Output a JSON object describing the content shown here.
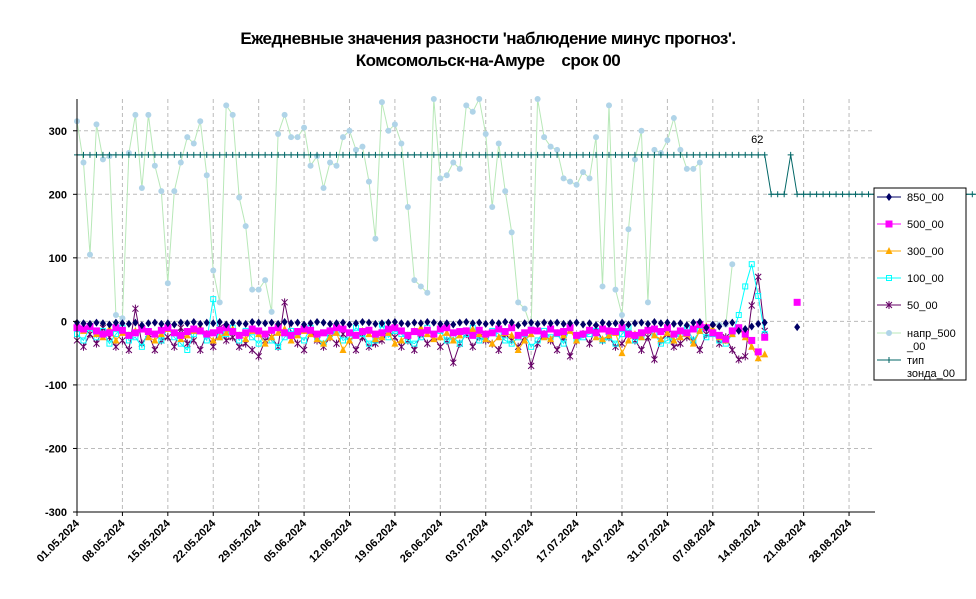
{
  "title": {
    "line1": "Ежедневные значения разности 'наблюдение минус прогноз'.",
    "line2": "Комсомольск-на-Амуре    срок 00"
  },
  "chart_data": {
    "type": "line",
    "ylim": [
      -300,
      350
    ],
    "yticks": [
      -300,
      -200,
      -100,
      0,
      100,
      200,
      300
    ],
    "ytick_labels": [
      "-300",
      "-200",
      "-100",
      "0",
      "100",
      "200",
      "300"
    ],
    "x_start": "2024-05-01",
    "xlim": [
      "2024-05-01",
      "2024-09-01"
    ],
    "xticks": [
      "2024-05-01",
      "2024-05-08",
      "2024-05-15",
      "2024-05-22",
      "2024-05-29",
      "2024-06-05",
      "2024-06-12",
      "2024-06-19",
      "2024-06-26",
      "2024-07-03",
      "2024-07-10",
      "2024-07-17",
      "2024-07-24",
      "2024-07-31",
      "2024-08-07",
      "2024-08-14",
      "2024-08-21",
      "2024-08-28"
    ],
    "xtick_labels": [
      "01.05.2024",
      "08.05.2024",
      "15.05.2024",
      "22.05.2024",
      "29.05.2024",
      "05.06.2024",
      "12.06.2024",
      "19.06.2024",
      "26.06.2024",
      "03.07.2024",
      "10.07.2024",
      "17.07.2024",
      "24.07.2024",
      "31.07.2024",
      "07.08.2024",
      "14.08.2024",
      "21.08.2024",
      "28.08.2024"
    ],
    "grid": true,
    "legend_position": "right",
    "annotation": {
      "text": "62",
      "series": "тип зонда_00",
      "x": "2024-08-14"
    },
    "series": [
      {
        "name": "850_00",
        "legend_lines": [
          "850_00"
        ],
        "color": "#000066",
        "marker": "diamond",
        "line": false,
        "values": [
          -2,
          -3,
          -4,
          -2,
          -3,
          -5,
          -2,
          -3,
          -4,
          -2,
          -6,
          -3,
          -2,
          -4,
          -3,
          -5,
          -2,
          -3,
          -1,
          -4,
          -2,
          -3,
          -1,
          -5,
          -2,
          -3,
          -4,
          -1,
          -2,
          -3,
          -2,
          -4,
          -1,
          -3,
          -2,
          -5,
          -3,
          -1,
          -2,
          -4,
          -3,
          -2,
          -5,
          -3,
          -1,
          -2,
          -4,
          -3,
          -2,
          -1,
          -3,
          -4,
          -2,
          -3,
          -1,
          -2,
          -4,
          -3,
          -5,
          -2,
          -1,
          -3,
          -2,
          -4,
          -2,
          -3,
          -1,
          -2,
          -6,
          -3,
          -2,
          -4,
          -2,
          -3,
          -2,
          -4,
          -3,
          -2,
          -5,
          -3,
          -6,
          -2,
          -4,
          -3,
          -2,
          -5,
          -3,
          -2,
          -4,
          -1,
          -3,
          -2,
          -4,
          -3,
          -6,
          -2,
          -1,
          -10,
          -5,
          -8,
          -3,
          -2,
          -15,
          -12,
          -8,
          -4,
          -2,
          null,
          null,
          null,
          null,
          -9
        ]
      },
      {
        "name": "500_00",
        "legend_lines": [
          "500_00"
        ],
        "color": "#ff00ff",
        "marker": "square",
        "line": false,
        "values": [
          -10,
          -12,
          -8,
          -15,
          -20,
          -18,
          -10,
          -14,
          -22,
          -18,
          -12,
          -16,
          -20,
          -14,
          -10,
          -18,
          -22,
          -16,
          -12,
          -15,
          -20,
          -18,
          -14,
          -10,
          -16,
          -22,
          -18,
          -12,
          -15,
          -20,
          -14,
          -10,
          -18,
          -22,
          -16,
          -12,
          -14,
          -20,
          -18,
          -15,
          -10,
          -12,
          -18,
          -22,
          -16,
          -14,
          -20,
          -18,
          -12,
          -10,
          -15,
          -22,
          -16,
          -18,
          -14,
          -20,
          -12,
          -10,
          -18,
          -16,
          -15,
          -22,
          -14,
          -20,
          -18,
          -12,
          -16,
          -10,
          -22,
          -18,
          -14,
          -15,
          -20,
          -12,
          -18,
          -16,
          -10,
          -22,
          -20,
          -14,
          -18,
          -12,
          -15,
          -16,
          -10,
          -20,
          -22,
          -18,
          -14,
          -12,
          -16,
          -10,
          -20,
          -15,
          -18,
          -12,
          -5,
          -10,
          -18,
          -22,
          -28,
          -15,
          -10,
          -20,
          -30,
          -48,
          -25,
          null,
          null,
          null,
          null,
          30
        ]
      },
      {
        "name": "300_00",
        "legend_lines": [
          "300_00"
        ],
        "color": "#ffaa00",
        "marker": "triangle",
        "line": true,
        "values": [
          -5,
          -15,
          -8,
          -20,
          -25,
          -12,
          -30,
          -18,
          -22,
          -15,
          -10,
          -25,
          -30,
          -20,
          -12,
          -18,
          -28,
          -22,
          -15,
          -10,
          -20,
          -30,
          -25,
          -18,
          -12,
          -22,
          -28,
          -15,
          -20,
          -35,
          -25,
          -18,
          -12,
          -30,
          -22,
          -15,
          -20,
          -28,
          -35,
          -25,
          -18,
          -45,
          -30,
          -22,
          -15,
          -20,
          -28,
          -25,
          -18,
          -35,
          -30,
          -22,
          -15,
          -10,
          -20,
          -28,
          -25,
          -18,
          -30,
          -22,
          -15,
          -12,
          -20,
          -28,
          -35,
          -25,
          -18,
          -22,
          -45,
          -30,
          -20,
          -15,
          -25,
          -28,
          -18,
          -22,
          -15,
          -30,
          -20,
          -12,
          -25,
          -28,
          -22,
          -18,
          -50,
          -30,
          -20,
          -25,
          -15,
          -22,
          -28,
          -18,
          -30,
          -25,
          -20,
          -35,
          -15,
          -8,
          -12,
          -25,
          -30,
          -20,
          -10,
          -25,
          -40,
          -58,
          -52,
          null,
          null,
          null,
          null,
          null
        ]
      },
      {
        "name": "100_00",
        "legend_lines": [
          "100_00"
        ],
        "color": "#00ffff",
        "marker": "square-open",
        "line": true,
        "values": [
          -20,
          -30,
          -10,
          -25,
          -15,
          -35,
          -20,
          -10,
          -30,
          -25,
          -40,
          -15,
          -20,
          -30,
          -10,
          -25,
          -35,
          -45,
          -20,
          -15,
          -30,
          35,
          -25,
          -20,
          -10,
          -30,
          -15,
          -25,
          -35,
          -20,
          -30,
          -40,
          -25,
          -15,
          -20,
          -30,
          -10,
          -25,
          -35,
          -20,
          -15,
          -30,
          -25,
          -10,
          -20,
          -35,
          -30,
          -5,
          -25,
          -15,
          -20,
          -30,
          -35,
          -25,
          -10,
          -20,
          -15,
          -30,
          -25,
          -35,
          -20,
          -10,
          -30,
          -25,
          -15,
          -20,
          -30,
          -35,
          -25,
          -20,
          -40,
          -30,
          -15,
          -25,
          -20,
          -35,
          -10,
          -30,
          -25,
          -20,
          -15,
          -30,
          -25,
          -35,
          -20,
          -10,
          -30,
          -25,
          -15,
          -20,
          -35,
          -30,
          -25,
          -20,
          -10,
          -30,
          -15,
          -25,
          -20,
          -30,
          -35,
          -20,
          10,
          55,
          90,
          40,
          -20,
          null,
          null,
          null,
          null,
          null
        ]
      },
      {
        "name": "50_00",
        "legend_lines": [
          "50_00"
        ],
        "color": "#660066",
        "marker": "star",
        "line": true,
        "values": [
          -30,
          -40,
          -20,
          -35,
          -10,
          -25,
          -40,
          -30,
          -45,
          20,
          -35,
          -20,
          -45,
          -30,
          -25,
          -40,
          -10,
          -35,
          -30,
          -45,
          -20,
          -40,
          -10,
          -30,
          -25,
          -40,
          -35,
          -45,
          -55,
          -30,
          -25,
          -40,
          30,
          -20,
          -35,
          -45,
          -15,
          -30,
          -40,
          -25,
          -35,
          -20,
          -30,
          -45,
          -25,
          -40,
          -35,
          -30,
          -15,
          -25,
          -40,
          -30,
          -45,
          -20,
          -35,
          -25,
          -40,
          -30,
          -65,
          -35,
          -20,
          -40,
          -25,
          -30,
          -35,
          -45,
          -20,
          -30,
          -40,
          -25,
          -70,
          -35,
          -20,
          -30,
          -45,
          -25,
          -55,
          -30,
          -20,
          -35,
          -10,
          -30,
          -25,
          -40,
          -35,
          -20,
          -30,
          -45,
          -25,
          -60,
          -30,
          -20,
          -40,
          -35,
          -25,
          -30,
          -45,
          -20,
          -10,
          -35,
          -25,
          -45,
          -60,
          -55,
          25,
          70,
          -15,
          null,
          null,
          null,
          null,
          null
        ]
      },
      {
        "name": "напр_500_00",
        "legend_lines": [
          "напр_500",
          "_00"
        ],
        "color": "#b0d4e8",
        "line_color": "#b8e8b8",
        "marker": "circle",
        "line": true,
        "values": [
          315,
          250,
          105,
          310,
          255,
          260,
          10,
          5,
          265,
          325,
          210,
          325,
          245,
          205,
          60,
          205,
          250,
          290,
          280,
          315,
          230,
          80,
          30,
          340,
          325,
          195,
          150,
          50,
          50,
          65,
          15,
          295,
          325,
          290,
          290,
          305,
          245,
          260,
          210,
          250,
          245,
          290,
          300,
          270,
          275,
          220,
          130,
          345,
          300,
          310,
          280,
          180,
          65,
          55,
          45,
          350,
          225,
          230,
          250,
          240,
          340,
          330,
          350,
          295,
          180,
          280,
          205,
          140,
          30,
          20,
          -10,
          350,
          290,
          275,
          270,
          225,
          220,
          215,
          235,
          225,
          290,
          55,
          340,
          50,
          10,
          145,
          255,
          300,
          30,
          270,
          265,
          285,
          320,
          270,
          240,
          240,
          250,
          -10,
          -5,
          -5,
          -5,
          90,
          null,
          null,
          null,
          null
        ]
      },
      {
        "name": "тип зонда_00",
        "legend_lines": [
          "тип",
          "зонда_00"
        ],
        "color": "#006666",
        "marker": "plus",
        "line": true,
        "values": [
          262,
          262,
          262,
          262,
          262,
          262,
          262,
          262,
          262,
          262,
          262,
          262,
          262,
          262,
          262,
          262,
          262,
          262,
          262,
          262,
          262,
          262,
          262,
          262,
          262,
          262,
          262,
          262,
          262,
          262,
          262,
          262,
          262,
          262,
          262,
          262,
          262,
          262,
          262,
          262,
          262,
          262,
          262,
          262,
          262,
          262,
          262,
          262,
          262,
          262,
          262,
          262,
          262,
          262,
          262,
          262,
          262,
          262,
          262,
          262,
          262,
          262,
          262,
          262,
          262,
          262,
          262,
          262,
          262,
          262,
          262,
          262,
          262,
          262,
          262,
          262,
          262,
          262,
          262,
          262,
          262,
          262,
          262,
          262,
          262,
          262,
          262,
          262,
          262,
          262,
          262,
          262,
          262,
          262,
          262,
          262,
          262,
          262,
          262,
          262,
          262,
          262,
          262,
          262,
          262,
          262,
          262,
          200,
          200,
          200,
          262,
          200,
          200,
          200,
          200,
          200,
          200,
          200,
          200,
          200,
          200,
          200,
          200,
          200,
          200,
          200,
          200,
          200,
          200,
          200,
          200,
          200,
          200,
          200,
          200,
          200,
          200,
          200,
          200,
          200,
          200,
          200,
          200,
          200,
          200,
          200,
          200,
          200,
          200,
          200,
          200,
          200,
          200
        ]
      }
    ]
  }
}
